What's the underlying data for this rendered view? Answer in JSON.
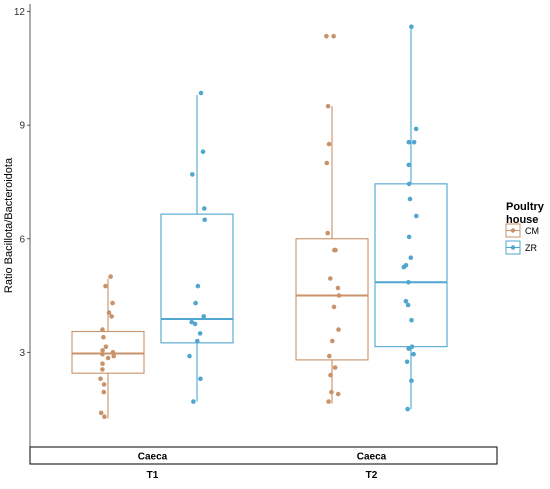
{
  "chart_data": {
    "type": "box",
    "title": "",
    "ylabel": "Ratio Bacillota/Bacteroidota",
    "xlabel": "",
    "ylim": [
      0.5,
      12.2
    ],
    "yticks": [
      3,
      6,
      9,
      12
    ],
    "grid": false,
    "legend": {
      "title": "Poultry house",
      "title_lines": [
        "Poultry",
        "house"
      ],
      "placement": "right",
      "entries": [
        {
          "label": "CM",
          "color": "#c8926a"
        },
        {
          "label": "ZR",
          "color": "#4fa6cf"
        }
      ]
    },
    "strip": "Caeca",
    "groups": [
      {
        "strip_label": "Caeca",
        "group_label": "T1",
        "boxes": [
          {
            "series": "CM",
            "q1": 2.45,
            "median": 2.97,
            "q3": 3.55,
            "whisker_low": 1.25,
            "whisker_high": 4.95,
            "points": [
              1.3,
              1.4,
              1.95,
              2.15,
              2.3,
              2.55,
              2.7,
              2.85,
              2.9,
              2.95,
              3.0,
              3.05,
              3.15,
              3.4,
              3.6,
              3.95,
              4.05,
              4.3,
              4.75,
              5.0
            ]
          },
          {
            "series": "ZR",
            "q1": 3.25,
            "median": 3.88,
            "q3": 6.65,
            "whisker_low": 1.7,
            "whisker_high": 9.8,
            "points": [
              1.7,
              2.3,
              2.9,
              3.3,
              3.5,
              3.75,
              3.8,
              3.95,
              4.3,
              4.75,
              6.5,
              6.8,
              7.7,
              8.3,
              9.85
            ]
          }
        ]
      },
      {
        "strip_label": "Caeca",
        "group_label": "T2",
        "boxes": [
          {
            "series": "CM",
            "q1": 2.8,
            "median": 4.5,
            "q3": 6.0,
            "whisker_low": 1.65,
            "whisker_high": 9.5,
            "points": [
              1.7,
              1.9,
              1.95,
              2.4,
              2.6,
              2.9,
              3.3,
              3.6,
              4.2,
              4.5,
              4.7,
              4.95,
              5.7,
              5.7,
              6.15,
              8.0,
              8.5,
              9.5,
              11.35,
              11.35
            ]
          },
          {
            "series": "ZR",
            "q1": 3.15,
            "median": 4.85,
            "q3": 7.45,
            "whisker_low": 1.5,
            "whisker_high": 11.55,
            "points": [
              1.5,
              2.25,
              2.75,
              2.95,
              3.1,
              3.15,
              3.85,
              4.25,
              4.35,
              4.85,
              5.25,
              5.3,
              5.5,
              6.05,
              6.6,
              7.05,
              7.45,
              7.95,
              8.55,
              8.55,
              8.9,
              11.6
            ]
          }
        ]
      }
    ]
  }
}
